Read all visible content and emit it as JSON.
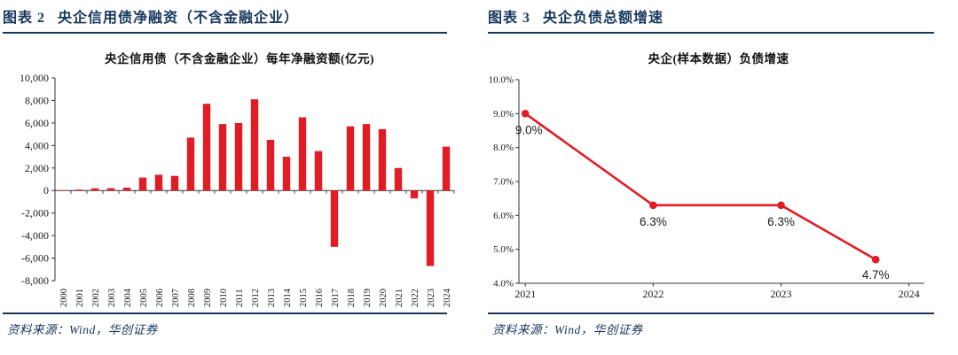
{
  "colors": {
    "navy": "#17375E",
    "red": "#E11C22",
    "axis": "#333333"
  },
  "panels": [
    {
      "header": {
        "tag": "图表 2",
        "title": "央企信用债净融资（不含金融企业）"
      },
      "source": "资料来源：Wind，华创证券"
    },
    {
      "header": {
        "tag": "图表 3",
        "title": "央企负债总额增速"
      },
      "source": "资料来源：Wind，华创证券"
    }
  ],
  "chart_data": [
    {
      "type": "bar",
      "title": "央企信用债（不含金融企业）每年净融资额(亿元)",
      "categories": [
        "2000",
        "2001",
        "2002",
        "2003",
        "2004",
        "2005",
        "2006",
        "2007",
        "2008",
        "2009",
        "2010",
        "2011",
        "2012",
        "2013",
        "2014",
        "2015",
        "2016",
        "2017",
        "2018",
        "2019",
        "2020",
        "2021",
        "2022",
        "2023",
        "2024"
      ],
      "values": [
        20,
        80,
        200,
        210,
        260,
        1150,
        1400,
        1300,
        4700,
        7700,
        5900,
        6000,
        8100,
        4500,
        3000,
        6500,
        3500,
        -5000,
        5700,
        5900,
        5450,
        2000,
        -700,
        -6700,
        3900
      ],
      "bar_color": "#E11C22",
      "ylim": [
        -8000,
        10000
      ],
      "grid": false,
      "legend": "none",
      "y_ticks": [
        {
          "value": 10000,
          "label": "10,000"
        },
        {
          "value": 8000,
          "label": "8,000"
        },
        {
          "value": 6000,
          "label": "6,000"
        },
        {
          "value": 4000,
          "label": "4,000"
        },
        {
          "value": 2000,
          "label": "2,000"
        },
        {
          "value": 0,
          "label": "0"
        },
        {
          "value": -2000,
          "label": "-2,000"
        },
        {
          "value": -4000,
          "label": "-4,000"
        },
        {
          "value": -6000,
          "label": "-6,000"
        },
        {
          "value": -8000,
          "label": "-8,000"
        }
      ]
    },
    {
      "type": "line",
      "title": "央企(样本数据）负债增速",
      "x": [
        2021,
        2022,
        2023,
        2023.74
      ],
      "values": [
        9.0,
        6.3,
        6.3,
        4.7
      ],
      "point_labels": [
        "9.0%",
        "6.3%",
        "6.3%",
        "4.7%"
      ],
      "line_color": "#E11C22",
      "ylim": [
        4.0,
        10.0
      ],
      "xlim": [
        2020.95,
        2024.12
      ],
      "grid": false,
      "legend": "none",
      "y_ticks": [
        {
          "value": 10.0,
          "label": "10.0%"
        },
        {
          "value": 9.0,
          "label": "9.0%"
        },
        {
          "value": 8.0,
          "label": "8.0%"
        },
        {
          "value": 7.0,
          "label": "7.0%"
        },
        {
          "value": 6.0,
          "label": "6.0%"
        },
        {
          "value": 5.0,
          "label": "5.0%"
        },
        {
          "value": 4.0,
          "label": "4.0%"
        }
      ],
      "x_ticks": [
        {
          "value": 2021,
          "label": "2021"
        },
        {
          "value": 2022,
          "label": "2022"
        },
        {
          "value": 2023,
          "label": "2023"
        },
        {
          "value": 2024,
          "label": "2024"
        }
      ]
    }
  ]
}
